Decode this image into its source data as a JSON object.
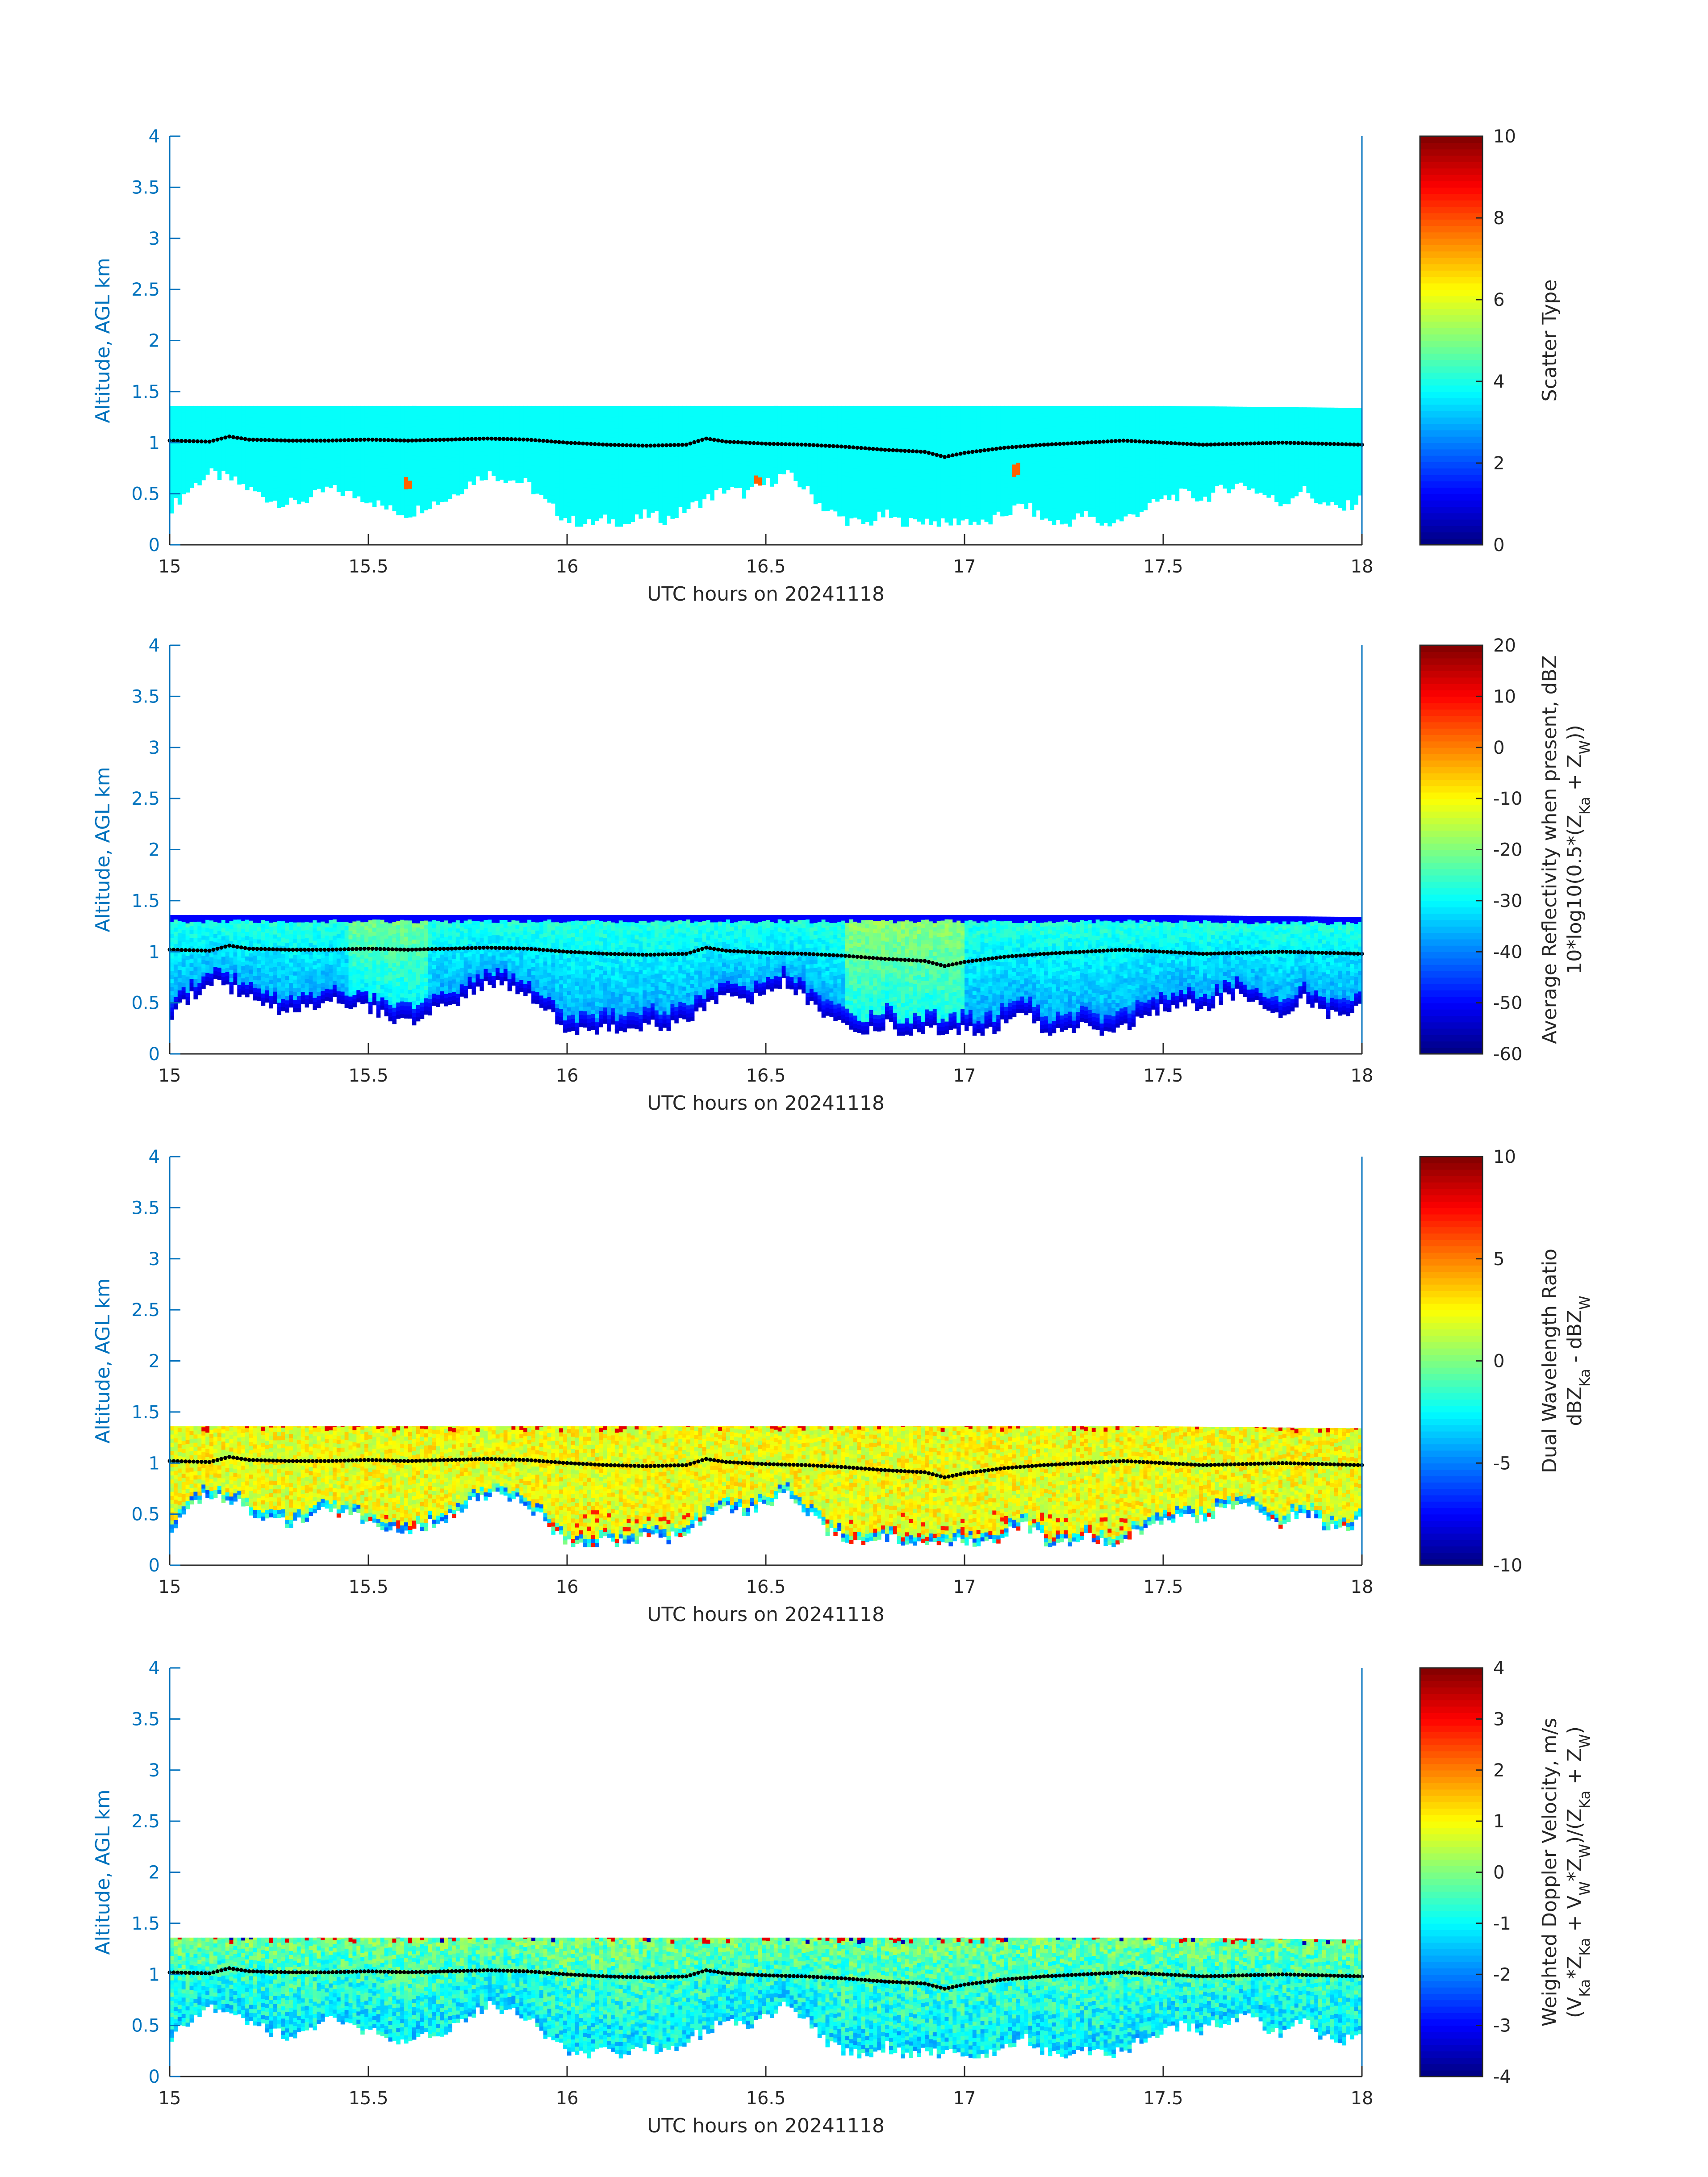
{
  "figure": {
    "date_label": "20241118"
  },
  "chart_data": [
    {
      "type": "heatmap",
      "xlabel": "UTC hours on 20241118",
      "ylabel": "Altitude, AGL km",
      "xlim": [
        15,
        18
      ],
      "ylim": [
        0,
        4
      ],
      "x_ticks": [
        "15",
        "15.5",
        "16",
        "16.5",
        "17",
        "17.5",
        "18"
      ],
      "y_ticks": [
        "0",
        "0.5",
        "1",
        "1.5",
        "2",
        "2.5",
        "3",
        "3.5",
        "4"
      ],
      "colorbar": {
        "label_lines": [
          "Scatter Type"
        ],
        "range": [
          0,
          10
        ],
        "ticks": [
          "0",
          "2",
          "4",
          "6",
          "8",
          "10"
        ]
      },
      "field": "scatter"
    },
    {
      "type": "heatmap",
      "xlabel": "UTC hours on 20241118",
      "ylabel": "Altitude, AGL km",
      "xlim": [
        15,
        18
      ],
      "ylim": [
        0,
        4
      ],
      "x_ticks": [
        "15",
        "15.5",
        "16",
        "16.5",
        "17",
        "17.5",
        "18"
      ],
      "y_ticks": [
        "0",
        "0.5",
        "1",
        "1.5",
        "2",
        "2.5",
        "3",
        "3.5",
        "4"
      ],
      "colorbar": {
        "label_lines": [
          "Average Reflectivity when present, dBZ",
          "10*log10(0.5*(Z_Ka + Z_W))"
        ],
        "range": [
          -60,
          20
        ],
        "ticks": [
          "-60",
          "-50",
          "-40",
          "-30",
          "-20",
          "-10",
          "0",
          "10",
          "20"
        ]
      },
      "field": "reflectivity"
    },
    {
      "type": "heatmap",
      "xlabel": "UTC hours on 20241118",
      "ylabel": "Altitude, AGL km",
      "xlim": [
        15,
        18
      ],
      "ylim": [
        0,
        4
      ],
      "x_ticks": [
        "15",
        "15.5",
        "16",
        "16.5",
        "17",
        "17.5",
        "18"
      ],
      "y_ticks": [
        "0",
        "0.5",
        "1",
        "1.5",
        "2",
        "2.5",
        "3",
        "3.5",
        "4"
      ],
      "colorbar": {
        "label_lines": [
          "Dual Wavelength Ratio",
          "dBZ_Ka - dBZ_W"
        ],
        "range": [
          -10,
          10
        ],
        "ticks": [
          "-10",
          "-5",
          "0",
          "5",
          "10"
        ]
      },
      "field": "dwr"
    },
    {
      "type": "heatmap",
      "xlabel": "UTC hours on 20241118",
      "ylabel": "Altitude, AGL km",
      "xlim": [
        15,
        18
      ],
      "ylim": [
        0,
        4
      ],
      "x_ticks": [
        "15",
        "15.5",
        "16",
        "16.5",
        "17",
        "17.5",
        "18"
      ],
      "y_ticks": [
        "0",
        "0.5",
        "1",
        "1.5",
        "2",
        "2.5",
        "3",
        "3.5",
        "4"
      ],
      "colorbar": {
        "label_lines": [
          "Weighted Doppler Velocity, m/s",
          "(V_Ka*Z_Ka + V_W*Z_W)/(Z_Ka + Z_W)"
        ],
        "range": [
          -4,
          4
        ],
        "ticks": [
          "-4",
          "-3",
          "-2",
          "-1",
          "0",
          "1",
          "2",
          "3",
          "4"
        ]
      },
      "field": "velocity"
    }
  ],
  "cloud_structure": {
    "cloud_top_km": [
      [
        15.0,
        1.36
      ],
      [
        15.5,
        1.36
      ],
      [
        16.0,
        1.36
      ],
      [
        16.5,
        1.36
      ],
      [
        17.0,
        1.36
      ],
      [
        17.5,
        1.36
      ],
      [
        18.0,
        1.34
      ]
    ],
    "cloud_base_km": [
      [
        15.0,
        0.35
      ],
      [
        15.05,
        0.55
      ],
      [
        15.1,
        0.7
      ],
      [
        15.15,
        0.65
      ],
      [
        15.2,
        0.55
      ],
      [
        15.25,
        0.45
      ],
      [
        15.3,
        0.4
      ],
      [
        15.35,
        0.45
      ],
      [
        15.4,
        0.55
      ],
      [
        15.45,
        0.5
      ],
      [
        15.5,
        0.45
      ],
      [
        15.55,
        0.35
      ],
      [
        15.6,
        0.3
      ],
      [
        15.65,
        0.4
      ],
      [
        15.7,
        0.45
      ],
      [
        15.75,
        0.6
      ],
      [
        15.8,
        0.7
      ],
      [
        15.85,
        0.65
      ],
      [
        15.9,
        0.6
      ],
      [
        15.95,
        0.4
      ],
      [
        16.0,
        0.25
      ],
      [
        16.05,
        0.2
      ],
      [
        16.1,
        0.25
      ],
      [
        16.15,
        0.2
      ],
      [
        16.2,
        0.3
      ],
      [
        16.25,
        0.25
      ],
      [
        16.3,
        0.35
      ],
      [
        16.35,
        0.45
      ],
      [
        16.4,
        0.55
      ],
      [
        16.45,
        0.5
      ],
      [
        16.5,
        0.6
      ],
      [
        16.55,
        0.7
      ],
      [
        16.6,
        0.55
      ],
      [
        16.65,
        0.35
      ],
      [
        16.7,
        0.25
      ],
      [
        16.75,
        0.2
      ],
      [
        16.8,
        0.3
      ],
      [
        16.85,
        0.2
      ],
      [
        16.9,
        0.25
      ],
      [
        16.95,
        0.2
      ],
      [
        17.0,
        0.25
      ],
      [
        17.05,
        0.2
      ],
      [
        17.1,
        0.3
      ],
      [
        17.15,
        0.4
      ],
      [
        17.2,
        0.25
      ],
      [
        17.25,
        0.2
      ],
      [
        17.3,
        0.3
      ],
      [
        17.35,
        0.2
      ],
      [
        17.4,
        0.25
      ],
      [
        17.45,
        0.35
      ],
      [
        17.5,
        0.45
      ],
      [
        17.55,
        0.5
      ],
      [
        17.6,
        0.45
      ],
      [
        17.65,
        0.55
      ],
      [
        17.7,
        0.6
      ],
      [
        17.75,
        0.5
      ],
      [
        17.8,
        0.4
      ],
      [
        17.85,
        0.55
      ],
      [
        17.9,
        0.4
      ],
      [
        17.95,
        0.35
      ],
      [
        18.0,
        0.45
      ]
    ],
    "inner_line_km": [
      [
        15.0,
        1.02
      ],
      [
        15.1,
        1.01
      ],
      [
        15.15,
        1.06
      ],
      [
        15.2,
        1.03
      ],
      [
        15.3,
        1.02
      ],
      [
        15.4,
        1.02
      ],
      [
        15.5,
        1.03
      ],
      [
        15.6,
        1.02
      ],
      [
        15.7,
        1.03
      ],
      [
        15.8,
        1.04
      ],
      [
        15.9,
        1.03
      ],
      [
        16.0,
        1.0
      ],
      [
        16.1,
        0.98
      ],
      [
        16.2,
        0.97
      ],
      [
        16.3,
        0.98
      ],
      [
        16.35,
        1.04
      ],
      [
        16.4,
        1.01
      ],
      [
        16.5,
        0.99
      ],
      [
        16.6,
        0.98
      ],
      [
        16.7,
        0.96
      ],
      [
        16.8,
        0.93
      ],
      [
        16.9,
        0.91
      ],
      [
        16.95,
        0.86
      ],
      [
        17.0,
        0.9
      ],
      [
        17.1,
        0.95
      ],
      [
        17.2,
        0.98
      ],
      [
        17.3,
        1.0
      ],
      [
        17.4,
        1.02
      ],
      [
        17.5,
        1.0
      ],
      [
        17.6,
        0.98
      ],
      [
        17.7,
        0.99
      ],
      [
        17.8,
        1.0
      ],
      [
        17.9,
        0.99
      ],
      [
        18.0,
        0.98
      ]
    ]
  }
}
